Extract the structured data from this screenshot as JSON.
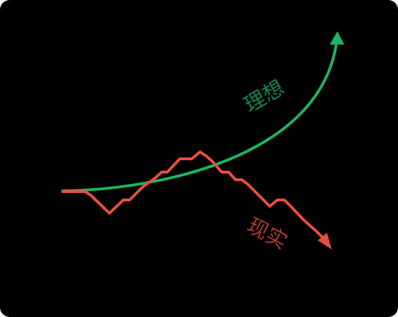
{
  "ideal": {
    "label": "理想",
    "color": "#1db55f",
    "label_color": "#14824a"
  },
  "reality": {
    "label": "现实",
    "color": "#e8503f",
    "label_color": "#a83a2e"
  },
  "background": "#000000"
}
